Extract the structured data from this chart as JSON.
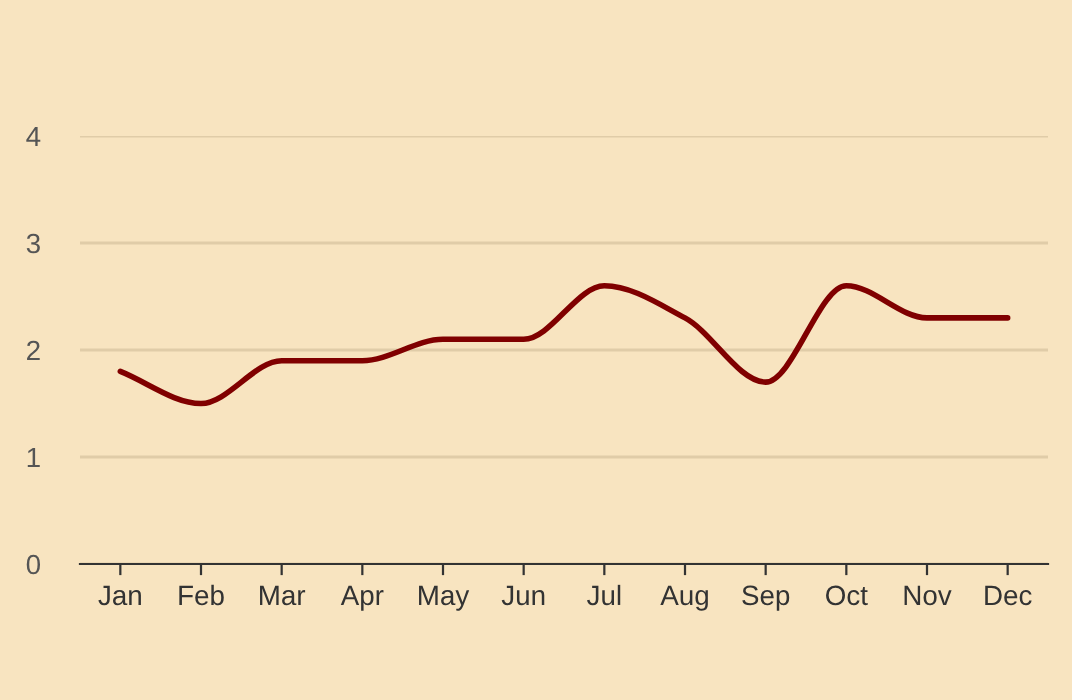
{
  "chart_data": {
    "type": "line",
    "categories": [
      "Jan",
      "Feb",
      "Mar",
      "Apr",
      "May",
      "Jun",
      "Jul",
      "Aug",
      "Sep",
      "Oct",
      "Nov",
      "Dec"
    ],
    "series": [
      {
        "color": "#800000",
        "values": [
          1.8,
          1.5,
          1.9,
          1.9,
          2.1,
          2.1,
          2.6,
          2.3,
          1.7,
          2.6,
          2.3,
          2.3
        ]
      }
    ],
    "ylim": [
      0,
      4
    ],
    "yticks": [
      0,
      1,
      2,
      3,
      4
    ],
    "grid": "y",
    "marker": "none",
    "line_style": "solid",
    "legend": false
  }
}
